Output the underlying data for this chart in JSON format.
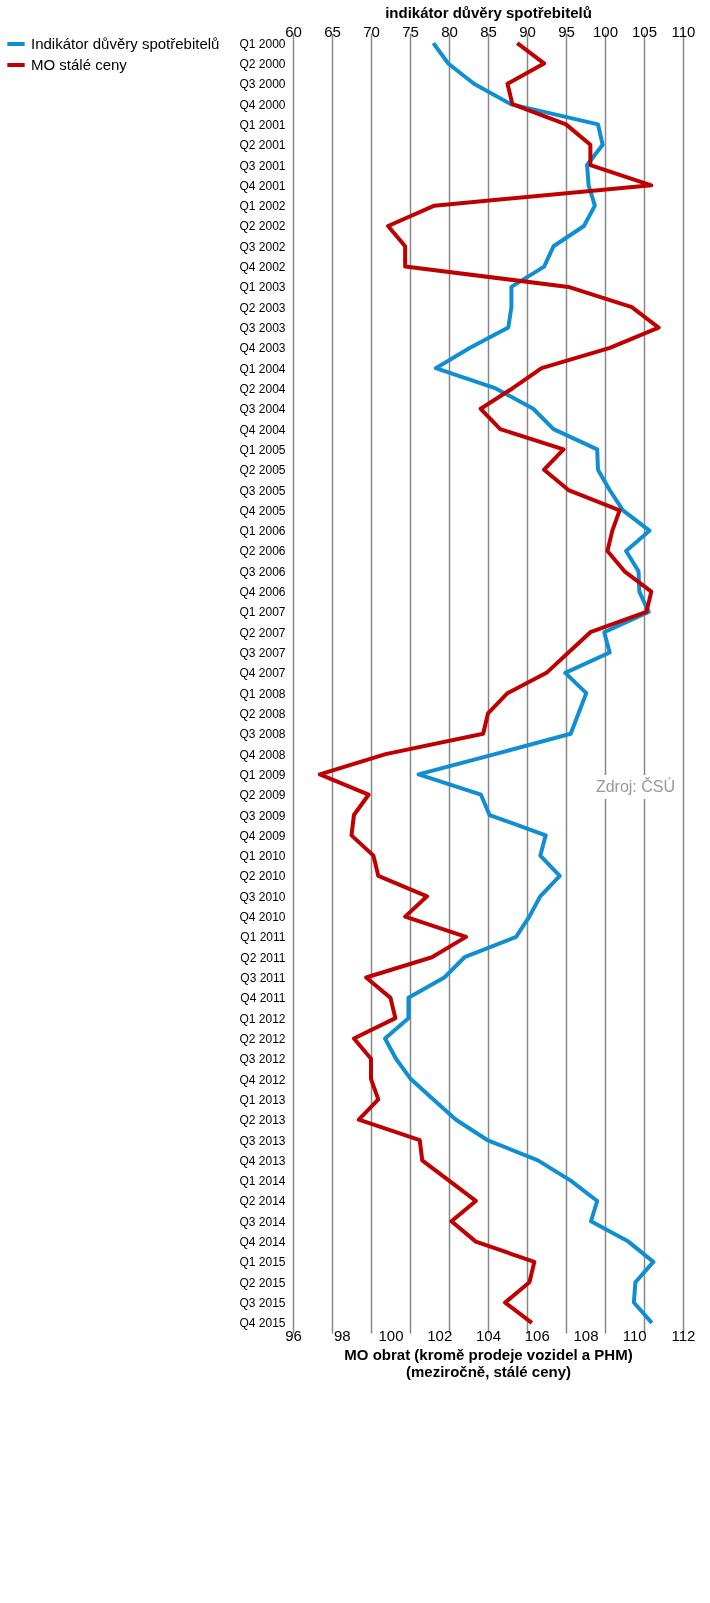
{
  "chart_data": {
    "type": "line",
    "x2label": "indikátor důvěry spotřebitelů",
    "xlabel": "MO obrat (kromě prodeje vozidel a PHM)\n(meziročně, stálé ceny)",
    "orientation": "horizontal",
    "categories": [
      "Q1 2000",
      "Q2 2000",
      "Q3 2000",
      "Q4 2000",
      "Q1 2001",
      "Q2 2001",
      "Q3 2001",
      "Q4 2001",
      "Q1 2002",
      "Q2 2002",
      "Q3 2002",
      "Q4 2002",
      "Q1 2003",
      "Q2 2003",
      "Q3 2003",
      "Q4 2003",
      "Q1 2004",
      "Q2 2004",
      "Q3 2004",
      "Q4 2004",
      "Q1 2005",
      "Q2 2005",
      "Q3 2005",
      "Q4 2005",
      "Q1 2006",
      "Q2 2006",
      "Q3 2006",
      "Q4 2006",
      "Q1 2007",
      "Q2 2007",
      "Q3 2007",
      "Q4 2007",
      "Q1 2008",
      "Q2 2008",
      "Q3 2008",
      "Q4 2008",
      "Q1 2009",
      "Q2 2009",
      "Q3 2009",
      "Q4 2009",
      "Q1 2010",
      "Q2 2010",
      "Q3 2010",
      "Q4 2010",
      "Q1 2011",
      "Q2 2011",
      "Q3 2011",
      "Q4 2011",
      "Q1 2012",
      "Q2 2012",
      "Q3 2012",
      "Q4 2012",
      "Q1 2013",
      "Q2 2013",
      "Q3 2013",
      "Q4 2013",
      "Q1 2014",
      "Q2 2014",
      "Q3 2014",
      "Q4 2014",
      "Q1 2015",
      "Q2 2015",
      "Q3 2015",
      "Q4 2015"
    ],
    "series": [
      {
        "name": "Indikátor důvěry spotřebitelů",
        "color": "#0f8fd2",
        "axis": "x2",
        "values": [
          78.0,
          79.9,
          83.2,
          87.9,
          99.1,
          99.7,
          97.7,
          97.9,
          98.7,
          97.3,
          93.4,
          92.2,
          88.0,
          88.0,
          87.6,
          82.7,
          78.3,
          86.0,
          90.8,
          93.4,
          99.0,
          99.1,
          100.6,
          102.3,
          105.7,
          102.7,
          104.3,
          104.4,
          105.6,
          99.9,
          100.6,
          94.9,
          97.6,
          96.6,
          95.6,
          85.9,
          76.1,
          84.1,
          85.2,
          92.4,
          91.7,
          94.2,
          91.7,
          90.3,
          88.6,
          82.0,
          79.4,
          74.8,
          74.8,
          71.8,
          73.2,
          75.1,
          78.0,
          80.9,
          84.9,
          91.4,
          95.6,
          99.0,
          98.2,
          103.0,
          106.2,
          103.9,
          103.7,
          106.0
        ]
      },
      {
        "name": "MO stálé ceny",
        "color": "#c00000",
        "values": [
          105.2,
          106.3,
          104.8,
          105.0,
          107.2,
          108.2,
          108.2,
          110.7,
          101.8,
          99.9,
          100.6,
          100.6,
          107.3,
          109.9,
          111.0,
          109.0,
          106.2,
          105.0,
          103.7,
          104.5,
          107.1,
          106.3,
          107.3,
          109.4,
          109.1,
          108.9,
          109.6,
          110.7,
          110.5,
          108.2,
          107.3,
          106.4,
          104.8,
          104.0,
          103.8,
          99.8,
          97.1,
          99.1,
          98.5,
          98.4,
          99.3,
          99.5,
          101.5,
          100.6,
          103.1,
          101.7,
          99.0,
          100.0,
          100.2,
          98.5,
          99.2,
          99.2,
          99.5,
          98.7,
          101.2,
          101.3,
          102.4,
          103.5,
          102.5,
          103.5,
          105.9,
          105.7,
          104.7,
          105.8
        ]
      }
    ],
    "x2lim": [
      60,
      110
    ],
    "x2ticks": [
      60,
      65,
      70,
      75,
      80,
      85,
      90,
      95,
      100,
      105,
      110
    ],
    "xlim": [
      96,
      112
    ],
    "xticks": [
      96,
      98,
      100,
      102,
      104,
      106,
      108,
      110,
      112
    ],
    "grid": "x2",
    "legend": "left",
    "line_style": "solid",
    "marker": "none",
    "annotations": [
      "Zdroj: ČSÚ"
    ]
  }
}
